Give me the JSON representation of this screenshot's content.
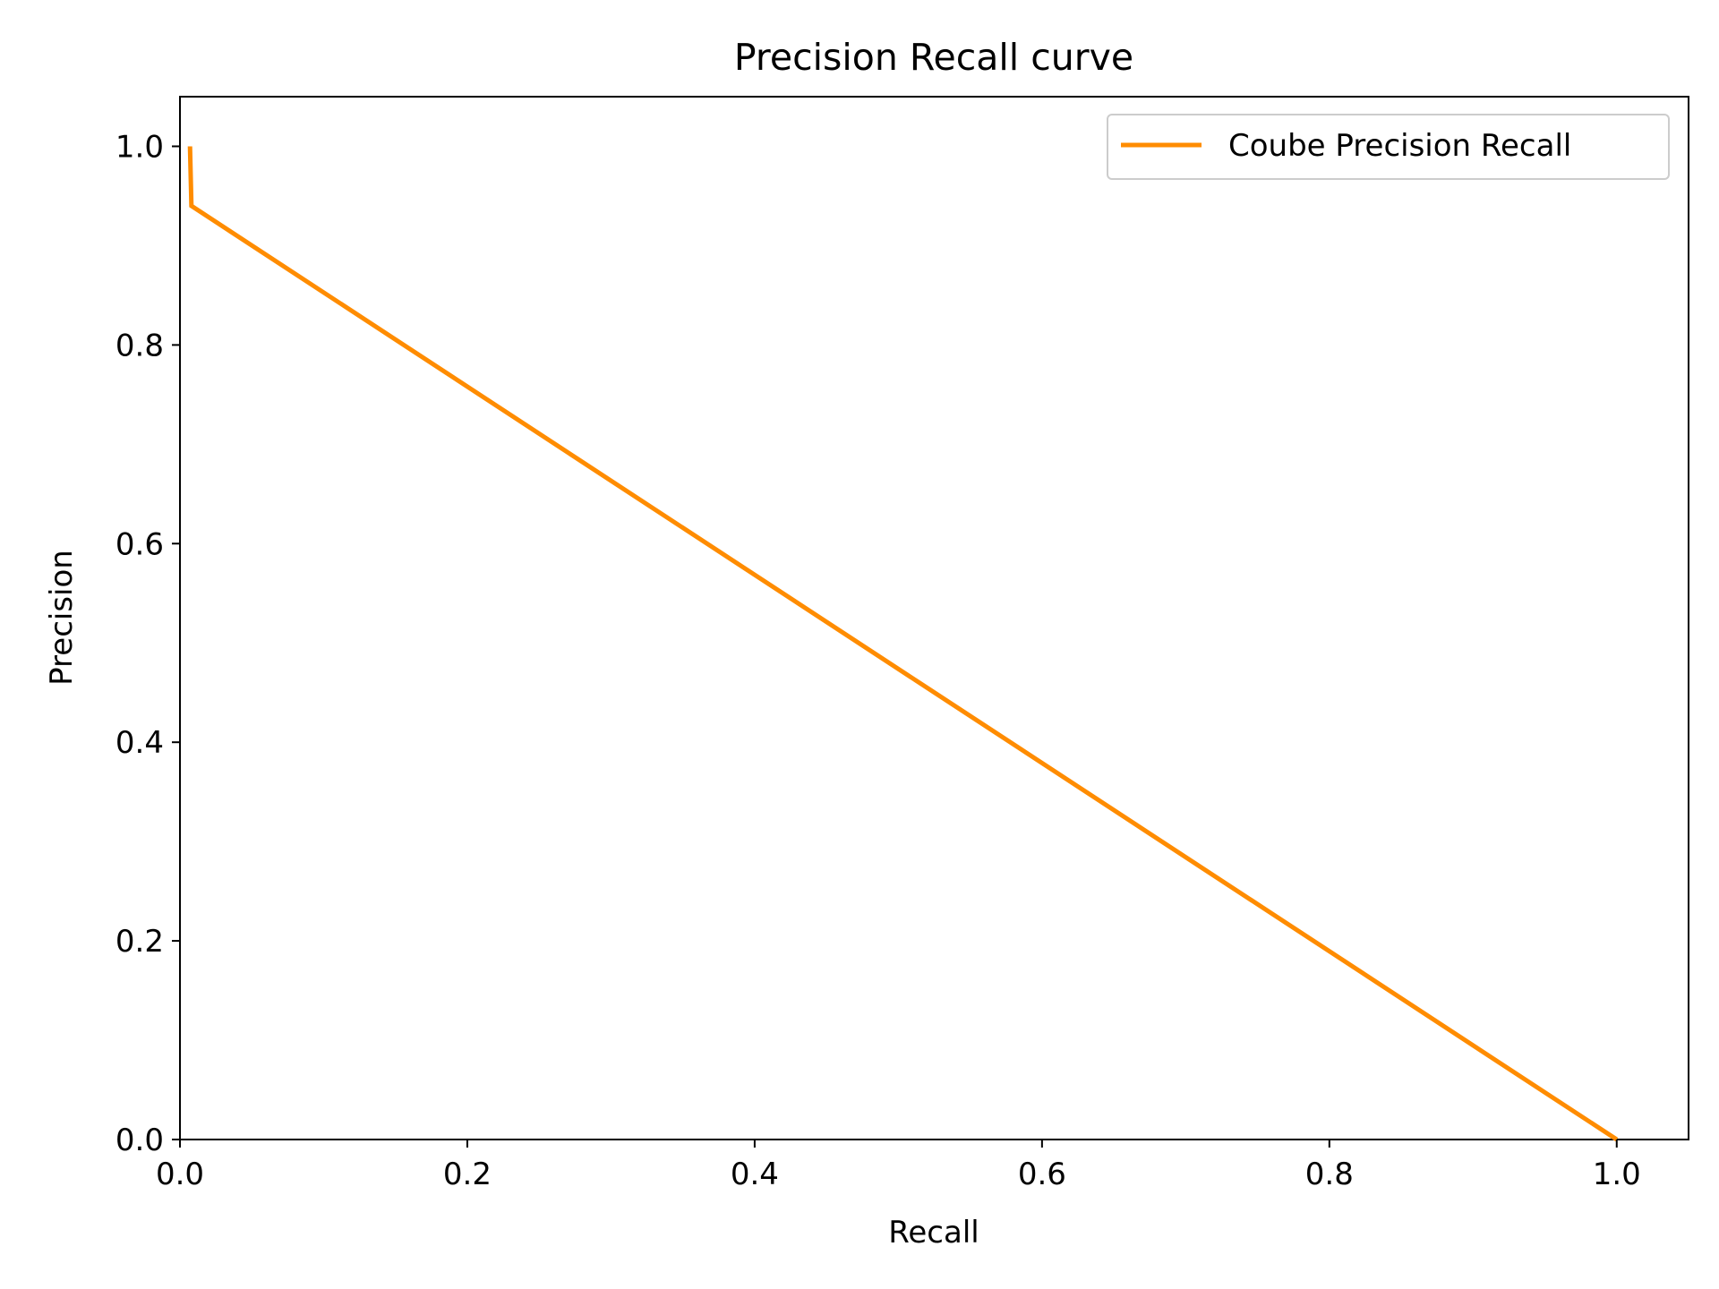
{
  "chart_data": {
    "type": "line",
    "title": "Precision Recall curve",
    "xlabel": "Recall",
    "ylabel": "Precision",
    "xlim": [
      0.0,
      1.05
    ],
    "ylim": [
      0.0,
      1.05
    ],
    "xticks": [
      "0.0",
      "0.2",
      "0.4",
      "0.6",
      "0.8",
      "1.0"
    ],
    "yticks": [
      "0.0",
      "0.2",
      "0.4",
      "0.6",
      "0.8",
      "1.0"
    ],
    "grid": false,
    "legend_position": "top-right",
    "series": [
      {
        "name": "Coube Precision Recall",
        "color": "#ff8c00",
        "x": [
          0.007,
          0.008,
          1.0
        ],
        "y": [
          1.0,
          0.94,
          0.0
        ]
      }
    ]
  }
}
